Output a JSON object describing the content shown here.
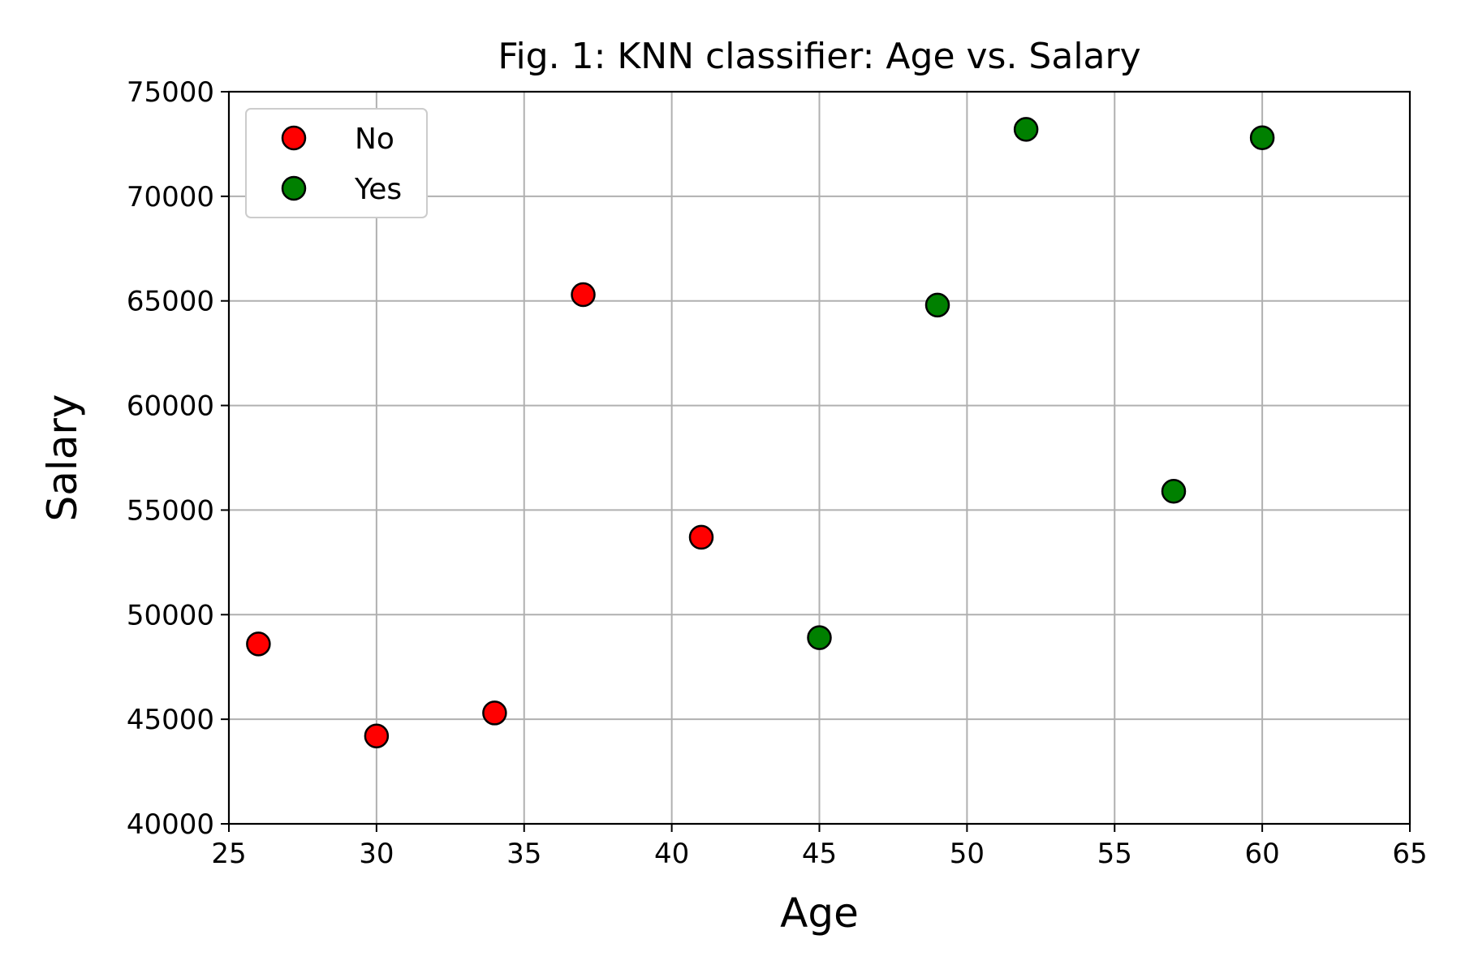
{
  "chart_data": {
    "type": "scatter",
    "title": "Fig. 1: KNN classifier: Age vs. Salary",
    "xlabel": "Age",
    "ylabel": "Salary",
    "xlim": [
      25,
      65
    ],
    "ylim": [
      40000,
      75000
    ],
    "xticks": [
      25,
      30,
      35,
      40,
      45,
      50,
      55,
      60,
      65
    ],
    "yticks": [
      40000,
      45000,
      50000,
      55000,
      60000,
      65000,
      70000,
      75000
    ],
    "grid": true,
    "legend_position": "top-left",
    "series": [
      {
        "name": "No",
        "color": "#ff0000",
        "points": [
          {
            "x": 26,
            "y": 48600
          },
          {
            "x": 30,
            "y": 44200
          },
          {
            "x": 34,
            "y": 45300
          },
          {
            "x": 37,
            "y": 65300
          },
          {
            "x": 41,
            "y": 53700
          }
        ]
      },
      {
        "name": "Yes",
        "color": "#008000",
        "points": [
          {
            "x": 45,
            "y": 48900
          },
          {
            "x": 49,
            "y": 64800
          },
          {
            "x": 52,
            "y": 73200
          },
          {
            "x": 57,
            "y": 55900
          },
          {
            "x": 60,
            "y": 72800
          }
        ]
      }
    ]
  }
}
